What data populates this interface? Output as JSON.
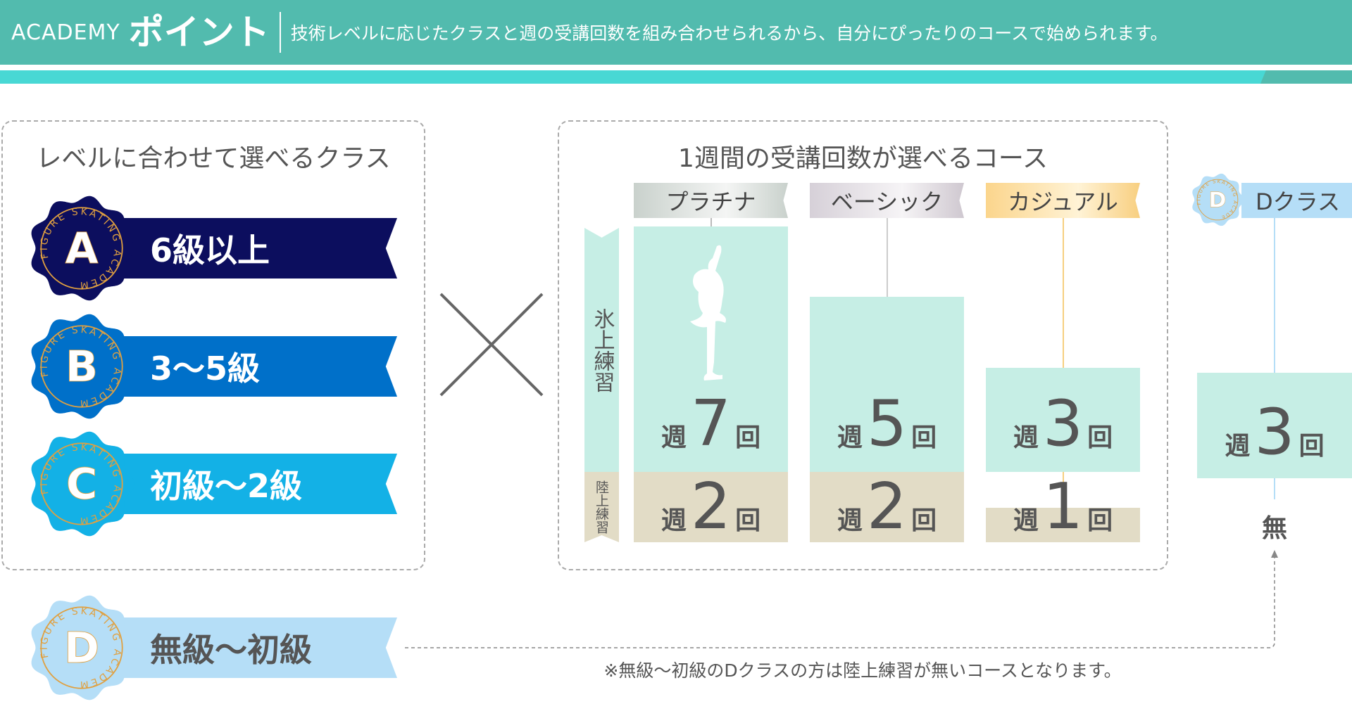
{
  "header": {
    "brand": "ACADEMY",
    "title": "ポイント",
    "subtitle": "技術レベルに応じたクラスと週の受講回数を組み合わせられるから、自分にぴったりのコースで始められます。"
  },
  "colors": {
    "header": "#52bbae",
    "stripe": "#48d8d4",
    "ice": "#c6eee5",
    "land": "#e2dcc6",
    "badge_ring": "#e0a040"
  },
  "badge_text": "FIGURE SKATING ACADEMY",
  "levels": {
    "title": "レベルに合わせて選べるクラス",
    "classes": [
      {
        "letter": "A",
        "label": "6級以上",
        "color": "#0c0e5e"
      },
      {
        "letter": "B",
        "label": "3〜5級",
        "color": "#0070c9"
      },
      {
        "letter": "C",
        "label": "初級〜2級",
        "color": "#13b1e6"
      },
      {
        "letter": "D",
        "label": "無級〜初級",
        "color": "#b5def7"
      }
    ]
  },
  "times_symbol": "×",
  "courses": {
    "title": "1週間の受講回数が選べるコース",
    "ice_label": "氷上練習",
    "land_label": "陸上練習",
    "week": "週",
    "times": "回",
    "items": [
      {
        "name": "プラチナ",
        "ice": "7",
        "land": "2"
      },
      {
        "name": "ベーシック",
        "ice": "5",
        "land": "2"
      },
      {
        "name": "カジュアル",
        "ice": "3",
        "land": "1"
      }
    ]
  },
  "d_class": {
    "letter": "D",
    "name": "Dクラス",
    "ice": "3",
    "land": "無"
  },
  "note": "※無級〜初級のDクラスの方は陸上練習が無いコースとなります。"
}
